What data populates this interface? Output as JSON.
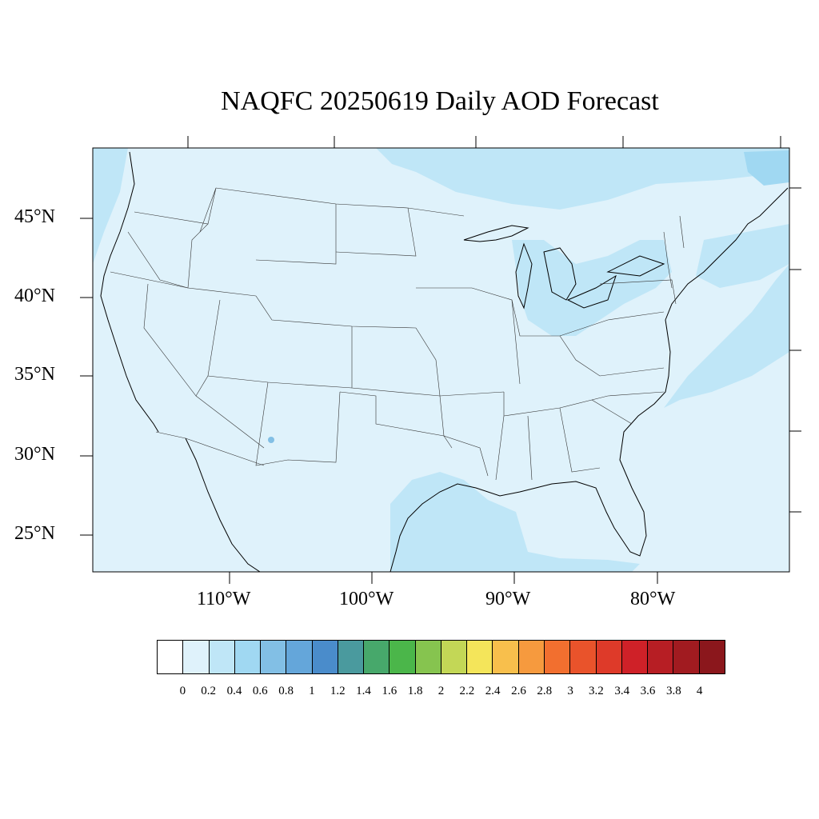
{
  "title": "NAQFC 20250619 Daily AOD Forecast",
  "map": {
    "projection": "Lambert Conformal (CONUS)",
    "lat_labels": [
      "45°N",
      "40°N",
      "35°N",
      "30°N",
      "25°N"
    ],
    "lon_labels": [
      "110°W",
      "100°W",
      "90°W",
      "80°W"
    ],
    "field_name": "AOD",
    "background_value_range": "0–0.2",
    "elevated_regions_range": "0.2–0.4",
    "elevated_regions": [
      "Gulf of Mexico",
      "Pacific coast",
      "Great Lakes / Ohio Valley",
      "Western Atlantic",
      "Canada north of Lake Superior",
      "Gulf of St. Lawrence"
    ]
  },
  "colorbar": {
    "labels": [
      "0",
      "0.2",
      "0.4",
      "0.6",
      "0.8",
      "1",
      "1.2",
      "1.4",
      "1.6",
      "1.8",
      "2",
      "2.2",
      "2.4",
      "2.6",
      "2.8",
      "3",
      "3.2",
      "3.4",
      "3.6",
      "3.8",
      "4"
    ],
    "colors": [
      "#ffffff",
      "#dff2fb",
      "#bfe6f7",
      "#a0d8f2",
      "#82bfe5",
      "#64a6da",
      "#4a8ccb",
      "#4a9a9e",
      "#47a86b",
      "#4bb64a",
      "#86c44f",
      "#c3d756",
      "#f4e55a",
      "#f8bf4c",
      "#f69a3e",
      "#f26f2f",
      "#e9532b",
      "#de3a29",
      "#cf2128",
      "#b71e24",
      "#a11b20",
      "#8b171c"
    ]
  }
}
